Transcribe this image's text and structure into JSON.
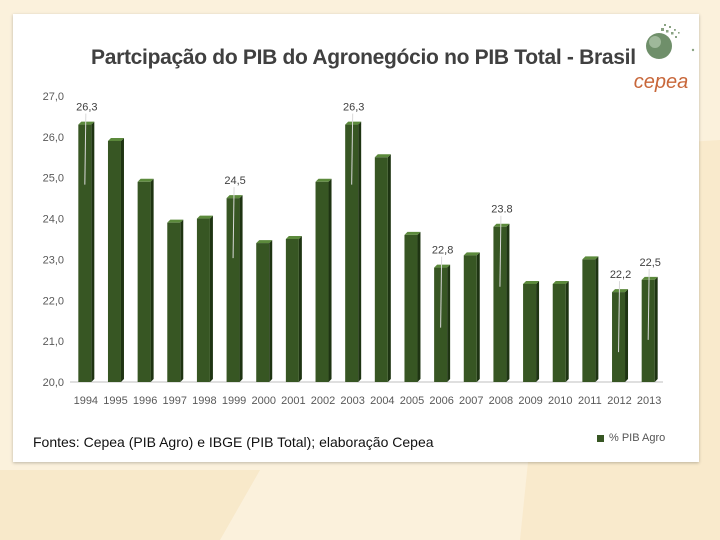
{
  "slide": {
    "title": "Partcipação do PIB do Agronegócio no PIB Total - Brasil",
    "source_note": "Fontes: Cepea (PIB Agro) e IBGE (PIB Total); elaboração Cepea",
    "logo_text": "cepea",
    "colors": {
      "bar_front": "#375623",
      "bar_side": "#1e3412",
      "bar_top": "#5c8a3c",
      "logo_text": "#c8673a",
      "background": "#fbf1dc"
    }
  },
  "chart_data": {
    "type": "bar",
    "categories": [
      "1994",
      "1995",
      "1996",
      "1997",
      "1998",
      "1999",
      "2000",
      "2001",
      "2002",
      "2003",
      "2004",
      "2005",
      "2006",
      "2007",
      "2008",
      "2009",
      "2010",
      "2011",
      "2012",
      "2013"
    ],
    "series": [
      {
        "name": "% PIB Agro",
        "values": [
          26.3,
          25.9,
          24.9,
          23.9,
          24.0,
          24.5,
          23.4,
          23.5,
          24.9,
          26.3,
          25.5,
          23.6,
          22.8,
          23.1,
          23.8,
          22.4,
          22.4,
          23.0,
          22.2,
          22.5
        ]
      }
    ],
    "data_labels": [
      {
        "index": 0,
        "text": "26,3"
      },
      {
        "index": 5,
        "text": "24,5"
      },
      {
        "index": 9,
        "text": "26,3"
      },
      {
        "index": 12,
        "text": "22,8"
      },
      {
        "index": 14,
        "text": "23.8"
      },
      {
        "index": 18,
        "text": "22,2"
      },
      {
        "index": 19,
        "text": "22,5"
      }
    ],
    "y_ticks": [
      "20,0",
      "21,0",
      "22,0",
      "23,0",
      "24,0",
      "25,0",
      "26,0",
      "27,0"
    ],
    "ylim": [
      20,
      27
    ],
    "xlabel": "",
    "ylabel": "",
    "grid": false,
    "legend_position": "bottom-right"
  }
}
